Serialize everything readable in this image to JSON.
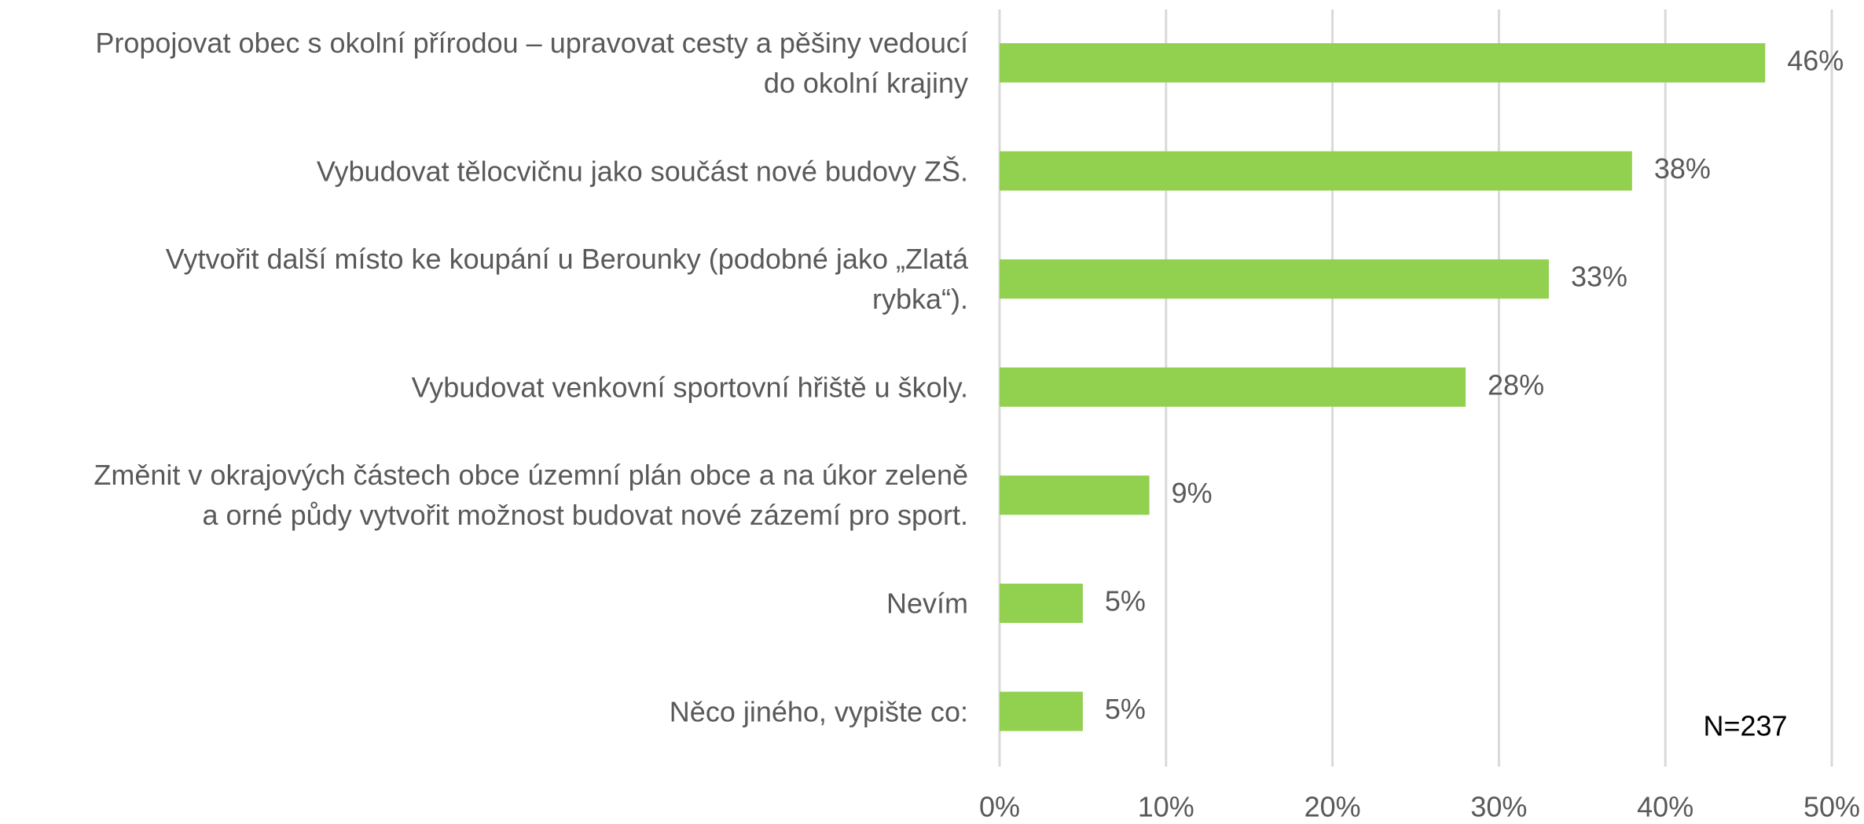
{
  "chart_data": {
    "type": "bar",
    "orientation": "horizontal",
    "categories": [
      "Propojovat obec s okolní přírodou – upravovat cesty a pěšiny vedoucí\ndo okolní krajiny",
      "Vybudovat tělocvičnu jako součást nové budovy ZŠ.",
      "Vytvořit další místo ke koupání u Berounky (podobné jako „Zlatá\nrybka“).",
      "Vybudovat venkovní sportovní hřiště u školy.",
      "Změnit v okrajových částech obce územní plán obce a na úkor zeleně\na orné půdy vytvořit možnost budovat nové zázemí pro sport.",
      "Nevím",
      "Něco jiného, vypište co:"
    ],
    "values": [
      46,
      38,
      33,
      28,
      9,
      5,
      5
    ],
    "value_labels": [
      "46%",
      "38%",
      "33%",
      "28%",
      "9%",
      "5%",
      "5%"
    ],
    "color": "#92d050",
    "xlim": [
      0,
      50
    ],
    "xticks": [
      {
        "value": 0,
        "label": "0%"
      },
      {
        "value": 10,
        "label": "10%"
      },
      {
        "value": 20,
        "label": "20%"
      },
      {
        "value": 30,
        "label": "30%"
      },
      {
        "value": 40,
        "label": "40%"
      },
      {
        "value": 50,
        "label": "50%"
      }
    ],
    "grid": true,
    "annotation": "N=237"
  }
}
